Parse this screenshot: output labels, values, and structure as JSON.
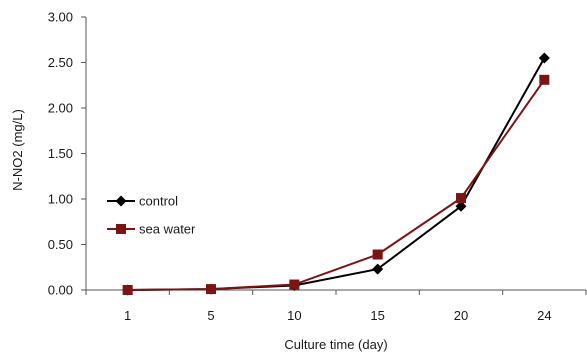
{
  "chart_data": {
    "type": "line",
    "categories": [
      "1",
      "5",
      "10",
      "15",
      "20",
      "24"
    ],
    "series": [
      {
        "name": "control",
        "values": [
          0.0,
          0.01,
          0.05,
          0.23,
          0.92,
          2.55
        ],
        "color": "#000000",
        "marker": "diamond"
      },
      {
        "name": "sea water",
        "values": [
          0.0,
          0.01,
          0.06,
          0.39,
          1.01,
          2.31
        ],
        "color": "#7b1414",
        "marker": "square"
      }
    ],
    "title": "",
    "xlabel": "Culture time (day)",
    "ylabel": "N-NO2 (mg/L)",
    "ylim": [
      0,
      3
    ],
    "yticks": [
      "0.00",
      "0.50",
      "1.00",
      "1.50",
      "2.00",
      "2.50",
      "3.00"
    ],
    "grid": false,
    "legend_position": "left"
  }
}
